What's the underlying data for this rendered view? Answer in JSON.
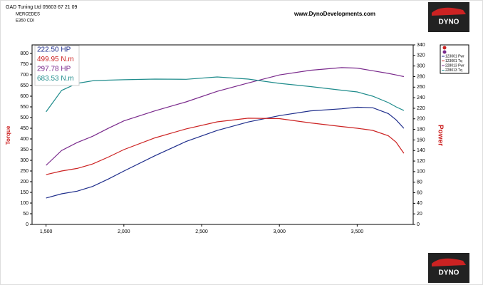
{
  "chart_data": {
    "type": "line",
    "header": [
      "GAD Tuning Ltd 05603 67 21 09",
      "MERCEDES",
      "E350 CDI"
    ],
    "website": "www.DynoDevelopments.com",
    "logo_text": "DYNO",
    "y_label": "Torque",
    "y2_label": "Power",
    "xlim": [
      1410,
      3860
    ],
    "xticks": [
      {
        "value": 1500,
        "label": "1,500"
      },
      {
        "value": 2000,
        "label": "2,000"
      },
      {
        "value": 2500,
        "label": "2,500"
      },
      {
        "value": 3000,
        "label": "3,000"
      },
      {
        "value": 3500,
        "label": "3,500"
      }
    ],
    "ylim": [
      0,
      840
    ],
    "yticks": [
      0,
      50,
      100,
      150,
      200,
      250,
      300,
      350,
      400,
      450,
      500,
      550,
      600,
      650,
      700,
      750,
      800
    ],
    "y2lim": [
      0,
      340
    ],
    "y2ticks": [
      0,
      20,
      40,
      60,
      80,
      100,
      120,
      140,
      160,
      180,
      200,
      220,
      240,
      260,
      280,
      300,
      320,
      340
    ],
    "x": [
      1500,
      1600,
      1700,
      1800,
      1900,
      2000,
      2200,
      2400,
      2600,
      2800,
      3000,
      3200,
      3400,
      3500,
      3600,
      3700,
      3750,
      3800
    ],
    "series": [
      {
        "name": "222.50 HP",
        "color": "#1f2e8c",
        "axis": "y2",
        "values": [
          50,
          58,
          63,
          72,
          86,
          101,
          130,
          157,
          178,
          194,
          206,
          215,
          219,
          222,
          221,
          210,
          198,
          182
        ]
      },
      {
        "name": "499.95 N.m",
        "color": "#cc2222",
        "values": [
          233,
          250,
          262,
          283,
          315,
          350,
          405,
          447,
          480,
          497,
          495,
          475,
          458,
          450,
          440,
          415,
          385,
          333
        ]
      },
      {
        "name": "297.78 HP",
        "color": "#7a2a8c",
        "axis": "y2",
        "values": [
          112,
          140,
          155,
          167,
          182,
          196,
          215,
          232,
          252,
          268,
          283,
          292,
          297,
          296,
          291,
          286,
          283,
          280
        ]
      },
      {
        "name": "683.53 N.m",
        "color": "#1f8c8c",
        "values": [
          527,
          627,
          660,
          672,
          675,
          677,
          680,
          679,
          690,
          680,
          660,
          645,
          628,
          620,
          600,
          570,
          550,
          533
        ]
      }
    ],
    "trace_labels": [
      "123001 Pwr",
      "123001 Tq",
      "228013 Pwr",
      "228013 Tq"
    ]
  }
}
